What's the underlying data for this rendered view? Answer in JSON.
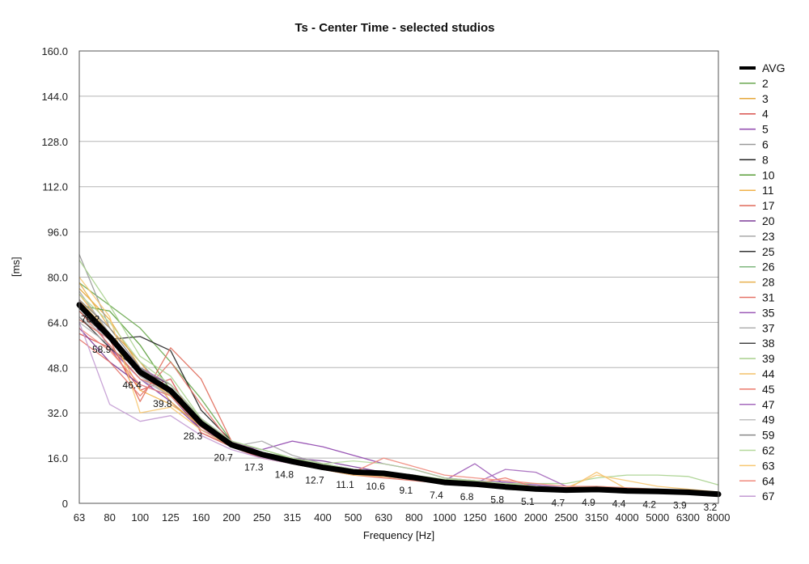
{
  "chart_data": {
    "type": "line",
    "title": "Ts - Center Time - selected studios",
    "xlabel": "Frequency [Hz]",
    "ylabel": "[ms]",
    "ylim": [
      0,
      160
    ],
    "ytick_labels": [
      "0",
      "16.0",
      "32.0",
      "48.0",
      "64.0",
      "80.0",
      "96.0",
      "112.0",
      "128.0",
      "144.0",
      "160.0"
    ],
    "categories": [
      "63",
      "80",
      "100",
      "125",
      "160",
      "200",
      "250",
      "315",
      "400",
      "500",
      "630",
      "800",
      "1000",
      "1250",
      "1600",
      "2000",
      "2500",
      "3150",
      "4000",
      "5000",
      "6300",
      "8000"
    ],
    "grid": "horizontal",
    "legend_position": "right",
    "series": [
      {
        "name": "AVG",
        "color": "#000000",
        "values": [
          70.2,
          58.9,
          46.4,
          39.8,
          28.3,
          20.7,
          17.3,
          14.8,
          12.7,
          11.1,
          10.6,
          9.1,
          7.4,
          6.8,
          5.8,
          5.1,
          4.7,
          4.9,
          4.4,
          4.2,
          3.9,
          3.2
        ]
      },
      {
        "name": "2",
        "color": "#6aa84f",
        "values": [
          78,
          70,
          62,
          50,
          37,
          22,
          18,
          15,
          13,
          11,
          10,
          9,
          7.5,
          6.8,
          6,
          5.2,
          4.8,
          5,
          4.5,
          4.3,
          4,
          3.4
        ]
      },
      {
        "name": "3",
        "color": "#e6a93c",
        "values": [
          76,
          65,
          48,
          42,
          30,
          21,
          17,
          14,
          12,
          10.5,
          10,
          8.5,
          7,
          6.5,
          5.5,
          5,
          4.5,
          4.6,
          4.2,
          4,
          3.7,
          3
        ]
      },
      {
        "name": "4",
        "color": "#d9534f",
        "values": [
          60,
          55,
          40,
          44,
          25,
          20,
          16,
          14,
          12,
          11,
          10,
          9,
          8,
          7,
          6,
          5,
          4.6,
          4.8,
          4.3,
          4,
          3.8,
          3.1
        ]
      },
      {
        "name": "5",
        "color": "#8e44ad",
        "values": [
          72,
          55,
          44,
          36,
          26,
          21,
          19,
          22,
          20,
          17,
          14,
          12,
          9,
          8,
          7.5,
          6.5,
          5.5,
          5.5,
          5,
          5,
          4.5,
          4
        ]
      },
      {
        "name": "6",
        "color": "#999999",
        "values": [
          88,
          62,
          50,
          38,
          28,
          21,
          18,
          15,
          13,
          11,
          10,
          9,
          7,
          6.5,
          5.5,
          5,
          4.5,
          4.8,
          4.4,
          4.1,
          3.8,
          3.3
        ]
      },
      {
        "name": "8",
        "color": "#222222",
        "values": [
          68,
          58,
          59,
          54,
          33,
          22,
          18,
          16,
          14,
          12,
          11,
          10,
          8,
          7,
          6,
          5.5,
          5,
          5,
          4.6,
          4.3,
          4,
          3.5
        ]
      },
      {
        "name": "10",
        "color": "#5a9e3a",
        "values": [
          70,
          68,
          56,
          40,
          30,
          22,
          19,
          16,
          13,
          11.5,
          10.5,
          9,
          7.5,
          7,
          6,
          5.2,
          4.8,
          5,
          4.5,
          4.2,
          3.9,
          3.2
        ]
      },
      {
        "name": "11",
        "color": "#f0b24a",
        "values": [
          74,
          60,
          40,
          35,
          28,
          21,
          17,
          15,
          13,
          12,
          11,
          9.5,
          8,
          7,
          6,
          5.4,
          5,
          5.2,
          4.6,
          4.4,
          4,
          3.4
        ]
      },
      {
        "name": "17",
        "color": "#e06a5a",
        "values": [
          65,
          58,
          36,
          55,
          44,
          22,
          18,
          15,
          12,
          10,
          9,
          8,
          7,
          6,
          5.2,
          4.8,
          4.5,
          4.7,
          4.2,
          4,
          3.6,
          3
        ]
      },
      {
        "name": "20",
        "color": "#7d3c98",
        "values": [
          62,
          50,
          42,
          38,
          26,
          20,
          17,
          16,
          15,
          13,
          11,
          10,
          8,
          7.5,
          6.5,
          5.5,
          5,
          5,
          4.6,
          4.3,
          4,
          3.4
        ]
      },
      {
        "name": "23",
        "color": "#aaaaaa",
        "values": [
          75,
          60,
          45,
          38,
          28,
          20,
          22,
          17,
          14,
          12,
          11,
          9.5,
          8,
          7,
          6,
          5.3,
          4.9,
          5,
          4.5,
          4.3,
          4,
          3.3
        ]
      },
      {
        "name": "25",
        "color": "#333333",
        "values": [
          66,
          55,
          47,
          40,
          29,
          21,
          17,
          14,
          12,
          10.5,
          10,
          8.5,
          7,
          6.5,
          5.6,
          5,
          4.6,
          4.8,
          4.3,
          4.1,
          3.8,
          3.1
        ]
      },
      {
        "name": "26",
        "color": "#7fb77e",
        "values": [
          70,
          60,
          48,
          42,
          30,
          21,
          18,
          15,
          13,
          11,
          10.5,
          9,
          7.5,
          7,
          6,
          5.2,
          4.8,
          4.9,
          4.5,
          4.2,
          3.9,
          3.2
        ]
      },
      {
        "name": "28",
        "color": "#e8b04e",
        "values": [
          78,
          62,
          50,
          36,
          27,
          20,
          17,
          15,
          13,
          11,
          10,
          9,
          7.5,
          7,
          6,
          5.3,
          4.8,
          5,
          4.5,
          4.2,
          4,
          3.3
        ]
      },
      {
        "name": "31",
        "color": "#e57368",
        "values": [
          58,
          50,
          38,
          50,
          35,
          21,
          18,
          15,
          12,
          10,
          9.5,
          8.5,
          7,
          6.5,
          5.5,
          5,
          4.6,
          4.8,
          4.3,
          4,
          3.8,
          3.1
        ]
      },
      {
        "name": "35",
        "color": "#9b59b6",
        "values": [
          72,
          58,
          46,
          40,
          28,
          21,
          17,
          15,
          13,
          11.5,
          10.5,
          9,
          8,
          14,
          6.5,
          5.5,
          5,
          5,
          4.6,
          4.3,
          4,
          3.4
        ]
      },
      {
        "name": "37",
        "color": "#b0b0b0",
        "values": [
          64,
          56,
          44,
          38,
          27,
          20,
          17,
          14.5,
          12.5,
          11,
          10,
          9,
          7.5,
          6.8,
          5.8,
          5.1,
          4.7,
          4.9,
          4.4,
          4.1,
          3.8,
          3.2
        ]
      },
      {
        "name": "38",
        "color": "#444444",
        "values": [
          70,
          58,
          47,
          42,
          30,
          21,
          17,
          15,
          13,
          11,
          10.5,
          9,
          7.5,
          7,
          6,
          5.2,
          4.8,
          5,
          4.5,
          4.2,
          3.9,
          3.2
        ]
      },
      {
        "name": "39",
        "color": "#a9d18e",
        "values": [
          86,
          70,
          52,
          45,
          30,
          20,
          18,
          16,
          14,
          12,
          11,
          10,
          8.5,
          8,
          7,
          7,
          7,
          9,
          10,
          10,
          9.5,
          6.5
        ]
      },
      {
        "name": "44",
        "color": "#f4c06a",
        "values": [
          72,
          60,
          46,
          38,
          28,
          21,
          17,
          15,
          13,
          11,
          10.5,
          9,
          7.5,
          7,
          6,
          5.3,
          4.8,
          11,
          5,
          4.4,
          4,
          3.4
        ]
      },
      {
        "name": "45",
        "color": "#ec7a6c",
        "values": [
          68,
          56,
          44,
          40,
          29,
          21,
          18,
          15,
          13,
          11,
          10,
          9,
          7.5,
          7,
          9,
          5.5,
          5,
          5,
          4.6,
          4.3,
          4,
          3.3
        ]
      },
      {
        "name": "47",
        "color": "#a569bd",
        "values": [
          70,
          60,
          48,
          42,
          30,
          22,
          18,
          15,
          13,
          11,
          10.5,
          9,
          7.5,
          7,
          12,
          11,
          6,
          5.5,
          5,
          4.6,
          4.2,
          3.6
        ]
      },
      {
        "name": "49",
        "color": "#c0c0c0",
        "values": [
          66,
          58,
          46,
          40,
          28,
          21,
          17,
          15,
          13,
          11,
          10,
          9,
          7.5,
          7,
          6,
          5.3,
          4.8,
          5,
          4.5,
          4.2,
          3.9,
          3.2
        ]
      },
      {
        "name": "59",
        "color": "#888888",
        "values": [
          72,
          62,
          48,
          40,
          29,
          21,
          18,
          15,
          13,
          11.5,
          10.5,
          9.5,
          8,
          7,
          6,
          5.4,
          5,
          5,
          4.6,
          4.3,
          4,
          3.4
        ]
      },
      {
        "name": "62",
        "color": "#b5d99c",
        "values": [
          74,
          64,
          50,
          42,
          30,
          22,
          19,
          16,
          14,
          15,
          14,
          12,
          9,
          8,
          7,
          6,
          5.5,
          6,
          5.5,
          5,
          4.6,
          4
        ]
      },
      {
        "name": "63",
        "color": "#f7c873",
        "values": [
          80,
          66,
          32,
          34,
          26,
          20,
          17,
          14,
          12,
          10,
          9.5,
          8.5,
          7,
          6.5,
          5.5,
          5,
          5.5,
          10,
          8,
          6,
          5,
          4
        ]
      },
      {
        "name": "64",
        "color": "#f08a7c",
        "values": [
          62,
          54,
          42,
          38,
          27,
          20,
          17,
          15,
          13,
          11,
          16,
          13,
          10,
          9,
          8,
          7,
          6,
          6,
          5.5,
          5,
          4.6,
          3.8
        ]
      },
      {
        "name": "67",
        "color": "#c39bd3",
        "values": [
          64,
          35,
          29,
          31,
          24,
          19,
          16,
          14,
          12,
          10.5,
          10,
          9,
          7.5,
          6.8,
          5.8,
          5.1,
          4.7,
          4.9,
          4.4,
          4.1,
          3.8,
          3.1
        ]
      }
    ]
  }
}
